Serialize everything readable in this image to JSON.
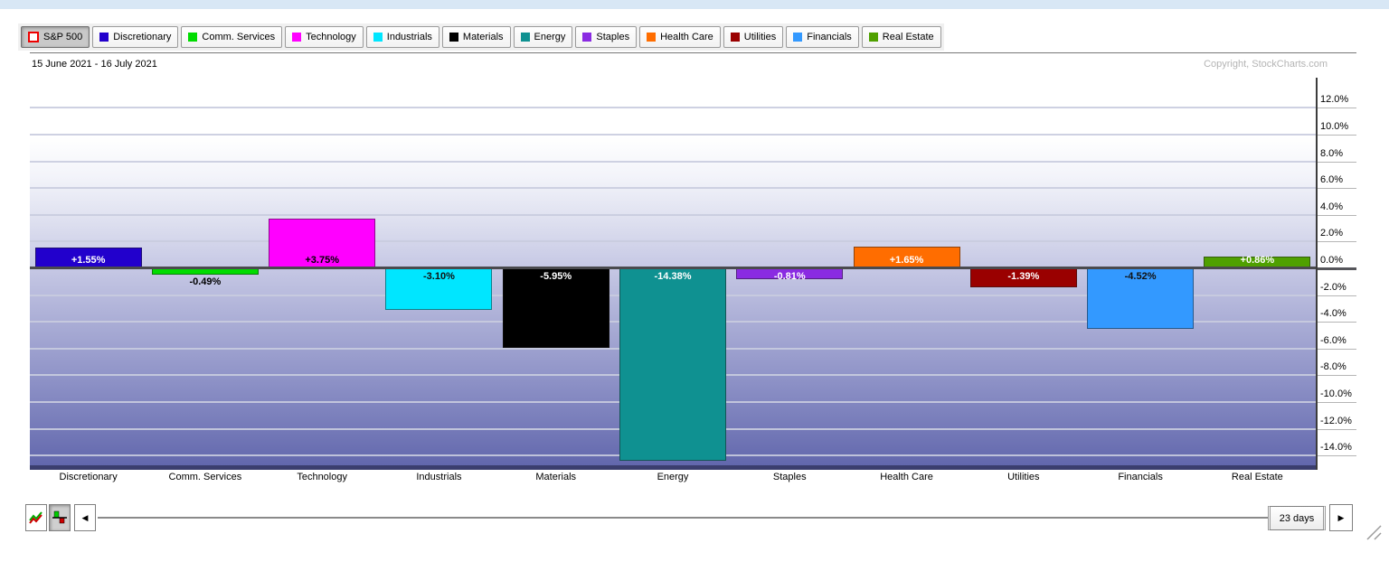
{
  "header": {
    "date_range": "15 June 2021 - 16 July 2021",
    "copyright": "Copyright, StockCharts.com"
  },
  "legend": {
    "items": [
      {
        "label": "S&P 500",
        "color": "#EE0000",
        "swatch": "outline",
        "selected": true
      },
      {
        "label": "Discretionary",
        "color": "#2200CC",
        "swatch": "solid",
        "selected": false
      },
      {
        "label": "Comm. Services",
        "color": "#00DC00",
        "swatch": "solid",
        "selected": false
      },
      {
        "label": "Technology",
        "color": "#FF00FF",
        "swatch": "solid",
        "selected": false
      },
      {
        "label": "Industrials",
        "color": "#00E6FF",
        "swatch": "solid",
        "selected": false
      },
      {
        "label": "Materials",
        "color": "#000000",
        "swatch": "solid",
        "selected": false
      },
      {
        "label": "Energy",
        "color": "#0F9191",
        "swatch": "solid",
        "selected": false
      },
      {
        "label": "Staples",
        "color": "#8A2BE2",
        "swatch": "solid",
        "selected": false
      },
      {
        "label": "Health Care",
        "color": "#FF6D00",
        "swatch": "solid",
        "selected": false
      },
      {
        "label": "Utilities",
        "color": "#9A0000",
        "swatch": "solid",
        "selected": false
      },
      {
        "label": "Financials",
        "color": "#3399FF",
        "swatch": "solid",
        "selected": false
      },
      {
        "label": "Real Estate",
        "color": "#4FA000",
        "swatch": "solid",
        "selected": false
      }
    ]
  },
  "chart_data": {
    "type": "bar",
    "title": "15 June 2021 - 16 July 2021",
    "xlabel": "",
    "ylabel": "",
    "grid": true,
    "legend_position": "top",
    "ylim": [
      -15.1,
      14.3
    ],
    "categories": [
      "Discretionary",
      "Comm. Services",
      "Technology",
      "Industrials",
      "Materials",
      "Energy",
      "Staples",
      "Health Care",
      "Utilities",
      "Financials",
      "Real Estate"
    ],
    "values": [
      1.55,
      -0.49,
      3.75,
      -3.1,
      -5.95,
      -14.38,
      -0.81,
      1.65,
      -1.39,
      -4.52,
      0.86
    ],
    "bar_labels": [
      "+1.55%",
      "-0.49%",
      "+3.75%",
      "-3.10%",
      "-5.95%",
      "-14.38%",
      "-0.81%",
      "+1.65%",
      "-1.39%",
      "-4.52%",
      "+0.86%"
    ],
    "bar_colors": [
      "#2200CC",
      "#00DC00",
      "#FF00FF",
      "#00E6FF",
      "#000000",
      "#0F9191",
      "#8A2BE2",
      "#FF6D00",
      "#9A0000",
      "#3399FF",
      "#4FA000"
    ],
    "label_colors": [
      "#FFFFFF",
      "#000000",
      "#000000",
      "#111111",
      "#FFFFFF",
      "#FFFFFF",
      "#FFFFFF",
      "#FFFFFF",
      "#FFFFFF",
      "#111111",
      "#FFFFFF"
    ],
    "label_placement": [
      "inside",
      "below",
      "inside",
      "inside",
      "inside",
      "inside",
      "inside",
      "inside",
      "inside",
      "inside",
      "inside"
    ],
    "yticks": [
      {
        "value": 12,
        "label": "12.0%"
      },
      {
        "value": 10,
        "label": "10.0%"
      },
      {
        "value": 8,
        "label": "8.0%"
      },
      {
        "value": 6,
        "label": "6.0%"
      },
      {
        "value": 4,
        "label": "4.0%"
      },
      {
        "value": 2,
        "label": "2.0%"
      },
      {
        "value": 0,
        "label": "0.0%"
      },
      {
        "value": -2,
        "label": "-2.0%"
      },
      {
        "value": -4,
        "label": "-4.0%"
      },
      {
        "value": -6,
        "label": "-6.0%"
      },
      {
        "value": -8,
        "label": "-8.0%"
      },
      {
        "value": -10,
        "label": "-10.0%"
      },
      {
        "value": -12,
        "label": "-12.0%"
      },
      {
        "value": -14,
        "label": "-14.0%"
      }
    ]
  },
  "toolbar": {
    "range_label": "23 days",
    "icons": [
      "line-chart-mode",
      "histogram-mode",
      "scroll-left",
      "scroll-right",
      "resize-grip"
    ]
  }
}
